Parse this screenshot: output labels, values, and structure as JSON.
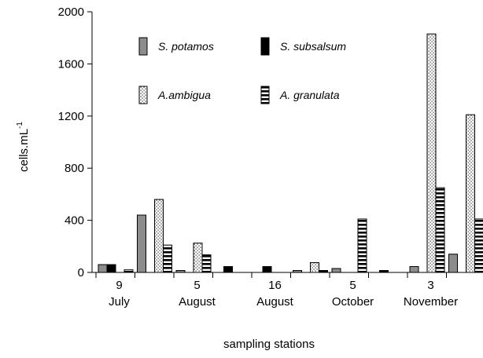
{
  "chart_data": {
    "type": "bar",
    "xlabel": "sampling stations",
    "ylabel": "cells.mL",
    "ylabel_superscript": "-1",
    "ylim": [
      0,
      2000
    ],
    "yticks": [
      0,
      400,
      800,
      1200,
      1600,
      2000
    ],
    "grid": false,
    "legend_position": "top-center",
    "station_labels": [
      {
        "day": "9",
        "month": "July"
      },
      {
        "day": "5",
        "month": "August"
      },
      {
        "day": "16",
        "month": "August"
      },
      {
        "day": "5",
        "month": "October"
      },
      {
        "day": "3",
        "month": "November"
      }
    ],
    "categories": [
      "9 July",
      "",
      "5 August",
      "",
      "16 August",
      "",
      "5 October",
      "",
      "3 November",
      ""
    ],
    "series": [
      {
        "name": "S. potamos",
        "pattern": "gray",
        "values": [
          60,
          440,
          15,
          0,
          0,
          15,
          30,
          0,
          45,
          140
        ]
      },
      {
        "name": "S. subsalsum",
        "pattern": "black",
        "values": [
          60,
          0,
          0,
          45,
          45,
          0,
          0,
          15,
          0,
          0
        ]
      },
      {
        "name": "A.ambigua",
        "pattern": "dotted",
        "values": [
          0,
          560,
          225,
          0,
          0,
          75,
          0,
          0,
          1830,
          1210
        ]
      },
      {
        "name": "A. granulata",
        "pattern": "striped",
        "values": [
          20,
          210,
          135,
          0,
          0,
          15,
          410,
          0,
          650,
          410
        ]
      }
    ]
  }
}
